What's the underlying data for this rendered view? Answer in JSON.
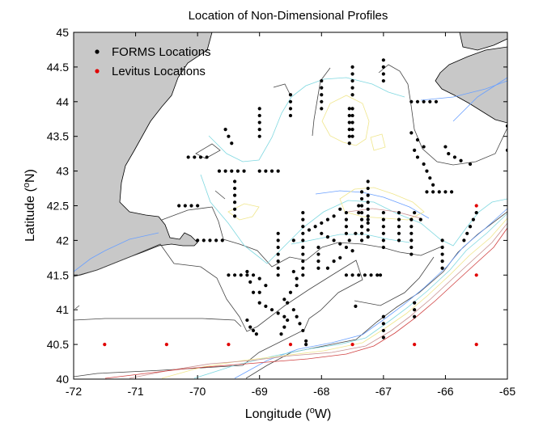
{
  "chart_data": {
    "type": "scatter",
    "title": "Location of Non-Dimensional Profiles",
    "xlabel_text": "Longitude (",
    "xlabel_sup": "o",
    "xlabel_end": "W)",
    "ylabel_text": "Latitude (",
    "ylabel_sup": "o",
    "ylabel_end": "N)",
    "xlim": [
      -72,
      -65
    ],
    "ylim": [
      40,
      45
    ],
    "xticks": [
      -72,
      -71,
      -70,
      -69,
      -68,
      -67,
      -66,
      -65
    ],
    "yticks": [
      40,
      40.5,
      41,
      41.5,
      42,
      42.5,
      43,
      43.5,
      44,
      44.5,
      45
    ],
    "xtick_labels": [
      "-72",
      "-71",
      "-70",
      "-69",
      "-68",
      "-67",
      "-66",
      "-65"
    ],
    "ytick_labels": [
      "40",
      "40.5",
      "41",
      "41.5",
      "42",
      "42.5",
      "43",
      "43.5",
      "44",
      "44.5",
      "45"
    ],
    "legend_position": "top-left",
    "colors": {
      "land": "#c8c8c8",
      "forms": "#000000",
      "levitus": "#e00000"
    },
    "series": [
      {
        "name": "FORMS Locations",
        "color": "#000000",
        "points": [
          [
            -69.55,
            43.6
          ],
          [
            -69.5,
            43.5
          ],
          [
            -69.45,
            43.4
          ],
          [
            -70.05,
            43.2
          ],
          [
            -69.95,
            43.2
          ],
          [
            -69.85,
            43.2
          ],
          [
            -70.15,
            43.2
          ],
          [
            -69.65,
            43.0
          ],
          [
            -69.55,
            43.0
          ],
          [
            -69.45,
            43.0
          ],
          [
            -69.35,
            43.0
          ],
          [
            -69.25,
            43.0
          ],
          [
            -69.0,
            43.0
          ],
          [
            -68.9,
            43.0
          ],
          [
            -68.8,
            43.0
          ],
          [
            -68.7,
            43.0
          ],
          [
            -70.3,
            42.5
          ],
          [
            -70.2,
            42.5
          ],
          [
            -70.1,
            42.5
          ],
          [
            -70.0,
            42.5
          ],
          [
            -69.4,
            42.85
          ],
          [
            -69.4,
            42.75
          ],
          [
            -69.4,
            42.65
          ],
          [
            -69.4,
            42.55
          ],
          [
            -69.4,
            42.45
          ],
          [
            -69.4,
            42.35
          ],
          [
            -69.6,
            42.0
          ],
          [
            -69.7,
            42.0
          ],
          [
            -69.8,
            42.0
          ],
          [
            -69.9,
            42.0
          ],
          [
            -70.0,
            42.0
          ],
          [
            -69.5,
            41.5
          ],
          [
            -69.4,
            41.5
          ],
          [
            -69.3,
            41.5
          ],
          [
            -69.2,
            41.5
          ],
          [
            -69.1,
            41.5
          ],
          [
            -69.0,
            41.45
          ],
          [
            -68.9,
            41.35
          ],
          [
            -69.0,
            41.25
          ],
          [
            -69.1,
            41.25
          ],
          [
            -69.15,
            41.4
          ],
          [
            -69.2,
            41.55
          ],
          [
            -69.0,
            41.1
          ],
          [
            -68.9,
            41.05
          ],
          [
            -68.8,
            41.0
          ],
          [
            -68.7,
            40.95
          ],
          [
            -68.6,
            40.9
          ],
          [
            -69.2,
            40.85
          ],
          [
            -69.15,
            40.75
          ],
          [
            -69.1,
            40.7
          ],
          [
            -69.05,
            40.65
          ],
          [
            -68.5,
            41.25
          ],
          [
            -68.6,
            41.15
          ],
          [
            -68.55,
            41.1
          ],
          [
            -68.45,
            41.0
          ],
          [
            -68.4,
            40.9
          ],
          [
            -68.35,
            40.8
          ],
          [
            -68.3,
            40.7
          ],
          [
            -68.25,
            40.55
          ],
          [
            -68.25,
            40.5
          ],
          [
            -68.55,
            40.85
          ],
          [
            -68.6,
            40.75
          ],
          [
            -68.65,
            40.65
          ],
          [
            -68.4,
            41.45
          ],
          [
            -68.4,
            41.35
          ],
          [
            -68.45,
            41.55
          ],
          [
            -68.7,
            42.1
          ],
          [
            -68.7,
            42.0
          ],
          [
            -68.7,
            41.9
          ],
          [
            -68.7,
            41.8
          ],
          [
            -68.7,
            41.7
          ],
          [
            -68.7,
            41.6
          ],
          [
            -68.7,
            41.5
          ],
          [
            -68.45,
            42.0
          ],
          [
            -68.3,
            42.1
          ],
          [
            -68.3,
            42.0
          ],
          [
            -68.3,
            41.9
          ],
          [
            -68.3,
            41.8
          ],
          [
            -68.3,
            41.7
          ],
          [
            -68.3,
            41.6
          ],
          [
            -68.3,
            41.5
          ],
          [
            -68.3,
            42.4
          ],
          [
            -68.3,
            42.3
          ],
          [
            -68.3,
            42.2
          ],
          [
            -68.2,
            42.15
          ],
          [
            -68.1,
            42.2
          ],
          [
            -68.0,
            42.25
          ],
          [
            -67.9,
            42.3
          ],
          [
            -67.8,
            42.35
          ],
          [
            -67.7,
            42.45
          ],
          [
            -68.0,
            42.1
          ],
          [
            -67.9,
            42.05
          ],
          [
            -67.8,
            42.0
          ],
          [
            -67.7,
            41.95
          ],
          [
            -67.6,
            41.9
          ],
          [
            -67.5,
            41.85
          ],
          [
            -68.05,
            41.6
          ],
          [
            -68.05,
            41.7
          ],
          [
            -68.05,
            41.8
          ],
          [
            -68.05,
            41.9
          ],
          [
            -67.9,
            41.6
          ],
          [
            -67.8,
            41.7
          ],
          [
            -67.7,
            41.75
          ],
          [
            -67.55,
            42.0
          ],
          [
            -67.45,
            42.1
          ],
          [
            -67.35,
            42.2
          ],
          [
            -67.25,
            42.3
          ],
          [
            -67.6,
            42.4
          ],
          [
            -67.6,
            42.3
          ],
          [
            -67.6,
            42.2
          ],
          [
            -67.6,
            42.1
          ],
          [
            -67.35,
            42.7
          ],
          [
            -67.35,
            42.6
          ],
          [
            -67.35,
            42.5
          ],
          [
            -67.35,
            42.4
          ],
          [
            -67.35,
            42.3
          ],
          [
            -67.35,
            42.2
          ],
          [
            -67.35,
            42.1
          ],
          [
            -67.35,
            42.0
          ],
          [
            -67.25,
            42.85
          ],
          [
            -67.25,
            42.75
          ],
          [
            -67.25,
            42.65
          ],
          [
            -67.25,
            42.55
          ],
          [
            -67.25,
            42.45
          ],
          [
            -67.25,
            42.35
          ],
          [
            -67.25,
            42.25
          ],
          [
            -67.25,
            42.15
          ],
          [
            -67.25,
            42.05
          ],
          [
            -67.0,
            42.4
          ],
          [
            -67.0,
            42.3
          ],
          [
            -67.0,
            42.2
          ],
          [
            -67.0,
            42.1
          ],
          [
            -67.0,
            42.0
          ],
          [
            -67.0,
            41.9
          ],
          [
            -66.75,
            42.4
          ],
          [
            -66.75,
            42.3
          ],
          [
            -66.75,
            42.2
          ],
          [
            -66.75,
            42.1
          ],
          [
            -66.75,
            42.0
          ],
          [
            -66.55,
            42.3
          ],
          [
            -66.55,
            42.2
          ],
          [
            -66.55,
            42.1
          ],
          [
            -66.55,
            42.0
          ],
          [
            -66.55,
            41.9
          ],
          [
            -66.55,
            41.8
          ],
          [
            -66.5,
            42.4
          ],
          [
            -66.4,
            42.3
          ],
          [
            -66.05,
            42.0
          ],
          [
            -66.05,
            41.9
          ],
          [
            -66.05,
            41.8
          ],
          [
            -66.05,
            41.7
          ],
          [
            -66.05,
            41.6
          ],
          [
            -65.7,
            42.0
          ],
          [
            -65.65,
            42.1
          ],
          [
            -65.6,
            42.2
          ],
          [
            -65.55,
            42.3
          ],
          [
            -65.5,
            42.4
          ],
          [
            -66.3,
            42.7
          ],
          [
            -66.2,
            42.7
          ],
          [
            -66.1,
            42.7
          ],
          [
            -66.0,
            42.7
          ],
          [
            -65.9,
            42.7
          ],
          [
            -66.5,
            43.3
          ],
          [
            -66.45,
            43.2
          ],
          [
            -66.35,
            43.1
          ],
          [
            -66.3,
            43.0
          ],
          [
            -66.25,
            42.9
          ],
          [
            -66.2,
            42.8
          ],
          [
            -66.0,
            43.35
          ],
          [
            -65.95,
            43.25
          ],
          [
            -65.85,
            43.2
          ],
          [
            -65.75,
            43.15
          ],
          [
            -65.6,
            43.1
          ],
          [
            -66.55,
            43.55
          ],
          [
            -66.45,
            43.45
          ],
          [
            -66.35,
            43.35
          ],
          [
            -66.55,
            44.0
          ],
          [
            -66.45,
            44.0
          ],
          [
            -66.35,
            44.0
          ],
          [
            -66.25,
            44.0
          ],
          [
            -66.15,
            44.0
          ],
          [
            -65.0,
            43.65
          ],
          [
            -65.0,
            43.3
          ],
          [
            -67.0,
            44.6
          ],
          [
            -67.0,
            44.5
          ],
          [
            -67.0,
            44.4
          ],
          [
            -67.0,
            44.3
          ],
          [
            -67.5,
            44.5
          ],
          [
            -67.5,
            44.4
          ],
          [
            -67.5,
            44.3
          ],
          [
            -67.5,
            44.2
          ],
          [
            -67.5,
            44.1
          ],
          [
            -67.55,
            43.9
          ],
          [
            -67.55,
            43.8
          ],
          [
            -67.55,
            43.7
          ],
          [
            -67.55,
            43.6
          ],
          [
            -67.55,
            43.5
          ],
          [
            -67.55,
            43.4
          ],
          [
            -67.5,
            43.9
          ],
          [
            -67.5,
            43.8
          ],
          [
            -67.5,
            43.7
          ],
          [
            -67.5,
            43.6
          ],
          [
            -67.5,
            43.5
          ],
          [
            -68.0,
            44.3
          ],
          [
            -68.0,
            44.2
          ],
          [
            -68.0,
            44.1
          ],
          [
            -68.0,
            44.0
          ],
          [
            -68.0,
            43.9
          ],
          [
            -68.5,
            44.1
          ],
          [
            -68.5,
            44.0
          ],
          [
            -68.5,
            43.9
          ],
          [
            -68.5,
            43.8
          ],
          [
            -69.0,
            43.9
          ],
          [
            -69.0,
            43.8
          ],
          [
            -69.0,
            43.7
          ],
          [
            -69.0,
            43.6
          ],
          [
            -69.0,
            43.5
          ],
          [
            -67.4,
            42.5
          ],
          [
            -67.4,
            42.4
          ],
          [
            -67.6,
            41.5
          ],
          [
            -67.5,
            41.5
          ],
          [
            -67.4,
            41.5
          ],
          [
            -67.3,
            41.5
          ],
          [
            -67.2,
            41.5
          ],
          [
            -67.1,
            41.5
          ],
          [
            -67.05,
            41.5
          ],
          [
            -67.0,
            40.9
          ],
          [
            -67.0,
            40.8
          ],
          [
            -67.0,
            40.7
          ],
          [
            -67.0,
            40.6
          ],
          [
            -66.5,
            41.1
          ],
          [
            -66.5,
            41.0
          ],
          [
            -66.5,
            40.9
          ],
          [
            -67.45,
            41.05
          ]
        ]
      },
      {
        "name": "Levitus Locations",
        "color": "#e00000",
        "points": [
          [
            -71.5,
            40.5
          ],
          [
            -70.5,
            40.5
          ],
          [
            -69.5,
            40.5
          ],
          [
            -68.5,
            40.5
          ],
          [
            -67.5,
            40.5
          ],
          [
            -66.5,
            40.5
          ],
          [
            -65.5,
            40.5
          ],
          [
            -65.5,
            41.5
          ],
          [
            -65.5,
            42.5
          ]
        ]
      }
    ]
  }
}
